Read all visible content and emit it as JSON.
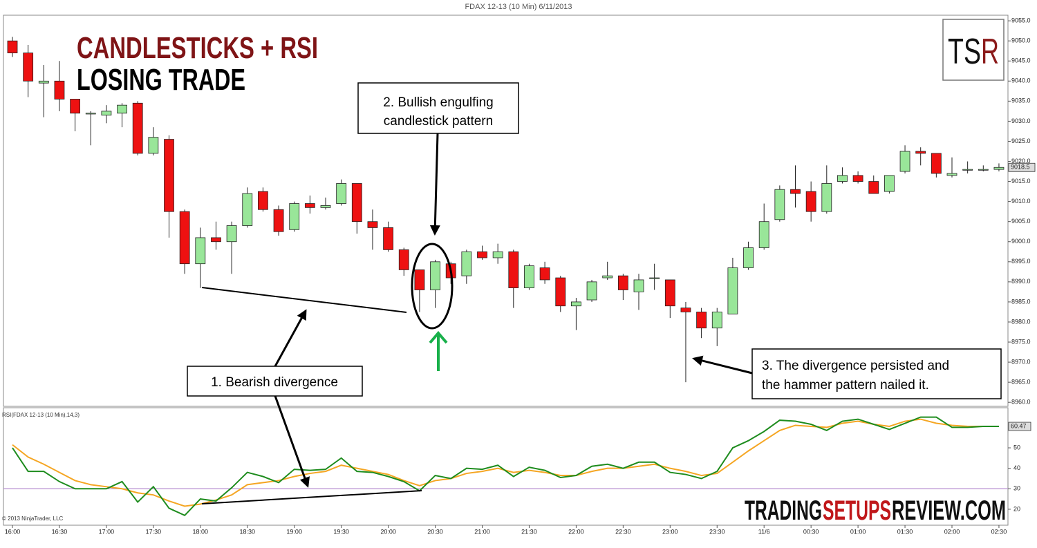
{
  "title": "FDAX 12-13 (10 Min)  6/11/2013",
  "headline": [
    "CANDLESTICKS + RSI",
    "LOSING TRADE"
  ],
  "logo": [
    "TS",
    "R"
  ],
  "watermark": [
    "TRADING",
    "SETUPS",
    "REVIEW.COM"
  ],
  "copyright": "© 2013 NinjaTrader, LLC",
  "annotations": [
    {
      "lines": [
        "2. Bullish  engulfing",
        "candlestick pattern"
      ]
    },
    {
      "lines": [
        "1. Bearish divergence"
      ]
    },
    {
      "lines": [
        "3. The divergence persisted and",
        "the hammer pattern nailed it."
      ]
    }
  ],
  "chart_data": [
    {
      "type": "candlestick",
      "up_color": "#99e699",
      "down_color": "#ee1111",
      "categories": [
        "16:00",
        null,
        null,
        "16:30",
        null,
        null,
        "17:00",
        null,
        null,
        "17:30",
        null,
        null,
        "18:00",
        null,
        null,
        "18:30",
        null,
        null,
        "19:00",
        null,
        null,
        "19:30",
        null,
        null,
        "20:00",
        null,
        null,
        "20:30",
        null,
        null,
        "21:00",
        null,
        null,
        "21:30",
        null,
        null,
        "22:00",
        null,
        null,
        "22:30",
        null,
        null,
        "23:00",
        null,
        null,
        "23:30",
        null,
        null,
        "11/6",
        null,
        null,
        "00:30",
        null,
        null,
        "01:00",
        null,
        null,
        "01:30",
        null,
        null,
        "02:00",
        null,
        null,
        "02:30"
      ],
      "open": [
        9050,
        9047,
        9039.5,
        9040,
        9035.5,
        9032,
        9031.5,
        9032,
        9034.5,
        9022,
        9025.5,
        9007.5,
        8994.5,
        9001,
        9000,
        9004,
        9012.5,
        9008,
        9003,
        9009.5,
        9008.5,
        9009.5,
        9014.5,
        9005,
        9003.5,
        8998,
        8993,
        8988,
        8994.5,
        8991.5,
        8997.5,
        8996,
        8997.5,
        8988.5,
        8993.5,
        8991,
        8984,
        8985.5,
        8991,
        8991.5,
        8987.5,
        8991,
        8990.5,
        8983.5,
        8982.5,
        8978.5,
        8982,
        8993.5,
        8998.5,
        9005.5,
        9013,
        9012.5,
        9007.5,
        9015,
        9016.5,
        9015,
        9012.5,
        9017.5,
        9022.5,
        9022,
        9016.5,
        9018,
        9018,
        9018
      ],
      "high": [
        9051,
        9049,
        9044,
        9045,
        9035.5,
        9032.5,
        9034,
        9034.5,
        9035,
        9028.5,
        9026.5,
        9008,
        9003.5,
        9005,
        9005,
        9013.5,
        9013.5,
        9009,
        9010,
        9011.5,
        9011,
        9015.5,
        9014.5,
        9008,
        9005,
        8998.5,
        8993,
        8995.5,
        8995,
        8998,
        8999,
        8999.5,
        8998,
        8994.5,
        8995,
        8991.5,
        8986,
        8990.5,
        8995,
        8992,
        8992,
        8994.5,
        8990.5,
        8985,
        8983.5,
        8983.5,
        8996,
        9000,
        9009.5,
        9014,
        9019,
        9015,
        9019,
        9018.5,
        9017.5,
        9016.5,
        9016.5,
        9024,
        9023.5,
        9022,
        9021,
        9020,
        9019,
        9019.5
      ],
      "low": [
        9046,
        9036,
        9031,
        9032.5,
        9027.5,
        9024,
        9029.5,
        9028.5,
        9021.5,
        9021.5,
        9001,
        8992,
        8988.5,
        8998,
        8992,
        9003.5,
        9007.5,
        9001.5,
        9002.5,
        9007,
        9008,
        9009,
        9002,
        8998,
        8997.5,
        8991.5,
        8982.5,
        8983.5,
        8989.5,
        8989.5,
        8995.5,
        8994.5,
        8983.5,
        8988,
        8989.5,
        8982.5,
        8978,
        8985,
        8990.5,
        8985.5,
        8983,
        8988,
        8981,
        8965,
        8976,
        8974,
        8982,
        8993,
        8998,
        9005,
        9008.5,
        9005,
        9007,
        9014.5,
        9014.5,
        9012,
        9012,
        9017,
        9019,
        9016,
        9016,
        9017,
        9017.5,
        9017.5
      ],
      "close": [
        9047,
        9040,
        9040,
        9035.5,
        9032,
        9032,
        9032.5,
        9034,
        9022,
        9026,
        9007.5,
        8994.5,
        9001,
        9000,
        9004,
        9012,
        9008,
        9002.5,
        9009.5,
        9008.5,
        9009,
        9014.5,
        9005,
        9003.5,
        8998,
        8993,
        8988,
        8995,
        8991,
        8997.5,
        8996,
        8997.5,
        8988.5,
        8994,
        8990.5,
        8984,
        8985,
        8990,
        8991.5,
        8988,
        8990.5,
        8991,
        8984,
        8982.5,
        8978.5,
        8982.5,
        8993.5,
        8998.5,
        9005,
        9013,
        9012,
        9007.5,
        9014.5,
        9016.5,
        9015,
        9012,
        9016.5,
        9022.5,
        9022,
        9017,
        9017,
        9018,
        9018,
        9018.5
      ],
      "ylim": [
        8959,
        9056.4
      ],
      "yticks": [
        {
          "value": 8960,
          "label": "8960.0"
        },
        {
          "value": 8965,
          "label": "8965.0"
        },
        {
          "value": 8970,
          "label": "8970.0"
        },
        {
          "value": 8975,
          "label": "8975.0"
        },
        {
          "value": 8980,
          "label": "8980.0"
        },
        {
          "value": 8985,
          "label": "8985.0"
        },
        {
          "value": 8990,
          "label": "8990.0"
        },
        {
          "value": 8995,
          "label": "8995.0"
        },
        {
          "value": 9000,
          "label": "9000.0"
        },
        {
          "value": 9005,
          "label": "9005.0"
        },
        {
          "value": 9010,
          "label": "9010.0"
        },
        {
          "value": 9015,
          "label": "9015.0"
        },
        {
          "value": 9020,
          "label": "9020.0"
        },
        {
          "value": 9025,
          "label": "9025.0"
        },
        {
          "value": 9030,
          "label": "9030.0"
        },
        {
          "value": 9035,
          "label": "9035.0"
        },
        {
          "value": 9040,
          "label": "9040.0"
        },
        {
          "value": 9045,
          "label": "9045.0"
        },
        {
          "value": 9050,
          "label": "9050.0"
        },
        {
          "value": 9055,
          "label": "9055.0"
        }
      ]
    },
    {
      "type": "line",
      "title": "RSI(FDAX 12-13 (10 Min),14,3)",
      "series": [
        {
          "color": "#1e8c1e",
          "values": [
            50,
            38.5,
            38.5,
            33.5,
            30,
            30,
            30,
            33.5,
            23.5,
            31,
            20.5,
            17,
            25,
            24,
            30.5,
            38,
            36,
            33,
            39.5,
            39,
            39.5,
            45,
            38.5,
            38,
            36,
            33.5,
            29,
            36.5,
            35,
            40,
            39.5,
            41.5,
            36,
            40.5,
            39,
            35.5,
            36.5,
            41,
            42,
            40,
            43,
            43,
            38,
            37,
            35,
            38.5,
            50,
            53.5,
            58,
            63.5,
            63,
            61.5,
            58.5,
            63,
            64,
            61.5,
            59,
            62,
            65,
            65,
            60,
            60,
            60.5,
            60.47
          ]
        },
        {
          "color": "#f5a623",
          "values": [
            51.5,
            45.5,
            42,
            38,
            34,
            32,
            31,
            30,
            28,
            27,
            24,
            21.5,
            22.5,
            24.5,
            27,
            32,
            33,
            34,
            36,
            37.5,
            38.5,
            41.5,
            40,
            38.5,
            37,
            34,
            31.5,
            34,
            35,
            37.5,
            38.5,
            40,
            38,
            39,
            38,
            36.5,
            36.5,
            38.5,
            40,
            40,
            41,
            42,
            40,
            38.5,
            36.5,
            37.5,
            43,
            48.5,
            53.5,
            58.5,
            61,
            60.5,
            60,
            62,
            63,
            61.5,
            60.5,
            63,
            64,
            62,
            61,
            60.5,
            60.5,
            60.5
          ]
        }
      ],
      "reference_line": 30,
      "reference_color": "#b48ccf",
      "ylim": [
        12.2,
        69.6
      ],
      "yticks": [
        20,
        30,
        40,
        50
      ]
    }
  ]
}
